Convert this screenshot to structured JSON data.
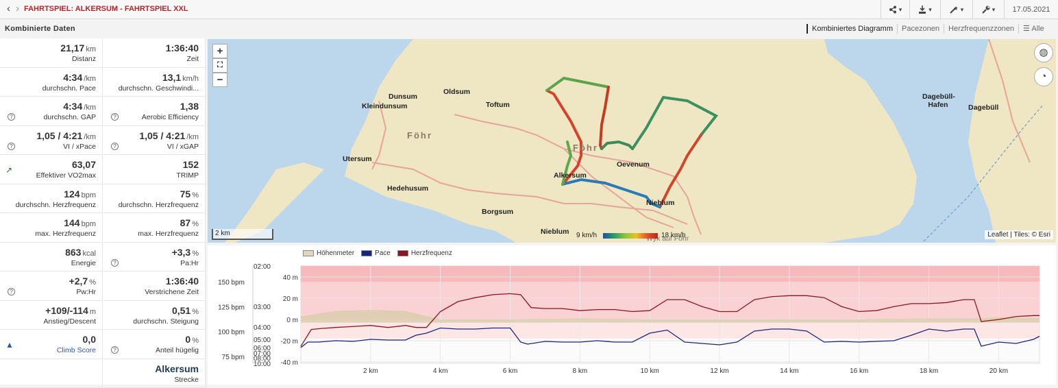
{
  "header": {
    "back_icon": "chevron-left-icon",
    "forward_icon": "chevron-right-icon",
    "title": "FAHRTSPIEL: ALKERSUM - FAHRTSPIEL XXL",
    "buttons": [
      "share-icon",
      "download-icon",
      "magic-wand-icon",
      "wrench-icon"
    ],
    "date": "17.05.2021"
  },
  "section": {
    "title": "Kombinierte Daten"
  },
  "tabs": [
    "Kombiniertes Diagramm",
    "Pacezonen",
    "Herzfrequenzzonen",
    "Alle"
  ],
  "stats": [
    [
      {
        "value": "21,17",
        "unit": "km",
        "label": "Distanz"
      },
      {
        "value": "1:36:40",
        "unit": "",
        "label": "Zeit"
      }
    ],
    [
      {
        "value": "4:34",
        "unit": "/km",
        "label": "durchschn. Pace"
      },
      {
        "value": "13,1",
        "unit": "km/h",
        "label": "durchschn. Geschwindi..."
      }
    ],
    [
      {
        "value": "4:34",
        "unit": "/km",
        "label": "durchschn. GAP",
        "help": true
      },
      {
        "value": "1,38",
        "unit": "",
        "label": "Aerobic Efficiency",
        "help": true
      }
    ],
    [
      {
        "value": "1,05 / 4:21",
        "unit": "/km",
        "label": "VI / xPace",
        "help": true
      },
      {
        "value": "1,05 / 4:21",
        "unit": "/km",
        "label": "VI / xGAP",
        "help": true
      }
    ],
    [
      {
        "value": "63,07",
        "unit": "",
        "label": "Effektiver VO2max",
        "icon": "trend-up-icon"
      },
      {
        "value": "152",
        "unit": "",
        "label": "TRIMP"
      }
    ],
    [
      {
        "value": "124",
        "unit": "bpm",
        "label": "durchschn. Herzfrequenz"
      },
      {
        "value": "75",
        "unit": "%",
        "label": "durchschn. Herzfrequenz"
      }
    ],
    [
      {
        "value": "144",
        "unit": "bpm",
        "label": "max. Herzfrequenz"
      },
      {
        "value": "87",
        "unit": "%",
        "label": "max. Herzfrequenz"
      }
    ],
    [
      {
        "value": "863",
        "unit": "kcal",
        "label": "Energie"
      },
      {
        "value": "+3,3",
        "unit": "%",
        "label": "Pa:Hr",
        "help": true
      }
    ],
    [
      {
        "value": "+2,7",
        "unit": "%",
        "label": "Pw:Hr",
        "help": true
      },
      {
        "value": "1:36:40",
        "unit": "",
        "label": "Verstrichene Zeit"
      }
    ],
    [
      {
        "value": "+109/-114",
        "unit": "m",
        "label": "Anstieg/Descent"
      },
      {
        "value": "0,51",
        "unit": "%",
        "label": "durchschn. Steigung"
      }
    ],
    [
      {
        "value": "0,0",
        "unit": "",
        "label": "Climb Score",
        "icon": "mountain-chart-icon",
        "blue": true
      },
      {
        "value": "0",
        "unit": "%",
        "label": "Anteil hügelig",
        "help": true
      }
    ],
    [
      null,
      {
        "value": "Alkersum",
        "unit": "",
        "label": "Strecke"
      }
    ]
  ],
  "map": {
    "zoom_in": "+",
    "zoom_out": "−",
    "fullscreen_icon": "fullscreen-icon",
    "layers_icon": "globe-icon",
    "dashboard_icon": "speedometer-icon",
    "scale": "2 km",
    "speed_min": "9 km/h",
    "speed_max": "18 km/h",
    "attribution": "Leaflet | Tiles: © Esri",
    "places": [
      "Dunsum",
      "Oldsum",
      "Kleindunsum",
      "Toftum",
      "Föhr",
      "Föhr",
      "Utersum",
      "Oevenum",
      "Alkersum",
      "Hedehusum",
      "Borgsum",
      "Nieblum",
      "Wyk auf Föhr",
      "Dagebüll-Hafen",
      "Dagebüll",
      "Nieblum"
    ]
  },
  "chart_data": {
    "type": "line",
    "legend": [
      "Höhenmeter",
      "Pace",
      "Herzfrequenz"
    ],
    "x_ticks": [
      "2 km",
      "4 km",
      "6 km",
      "8 km",
      "10 km",
      "12 km",
      "14 km",
      "16 km",
      "18 km",
      "20 km"
    ],
    "hr_ticks": [
      "150 bpm",
      "125 bpm",
      "100 bpm",
      "75 bpm"
    ],
    "pace_ticks": [
      "02:00",
      "03:00",
      "04:00",
      "05:00",
      "06:00",
      "07:00",
      "08:00",
      "10:00"
    ],
    "elev_ticks": [
      "40 m",
      "20 m",
      "0 m",
      "-20 m",
      "-40 m"
    ],
    "xlim": [
      0,
      21.17
    ],
    "series": [
      {
        "name": "Herzfrequenz",
        "color": "#8b1520",
        "x": [
          0,
          0.3,
          0.6,
          1,
          1.5,
          2,
          2.5,
          3,
          3.3,
          3.6,
          4,
          4.5,
          5,
          5.5,
          6,
          6.3,
          6.6,
          7,
          7.5,
          8,
          8.5,
          9,
          9.5,
          10,
          10.5,
          11,
          11.5,
          12,
          12.5,
          13,
          13.5,
          14,
          14.5,
          15,
          15.5,
          16,
          16.5,
          17,
          17.5,
          18,
          18.5,
          19,
          19.3,
          19.5,
          20,
          20.5,
          21,
          21.17
        ],
        "y": [
          85,
          102,
          103,
          104,
          105,
          106,
          104,
          106,
          104,
          104,
          120,
          130,
          134,
          137,
          138,
          137,
          124,
          123,
          123,
          121,
          122,
          122,
          120,
          121,
          132,
          132,
          125,
          120,
          120,
          132,
          135,
          136,
          136,
          134,
          125,
          120,
          121,
          125,
          128,
          128,
          129,
          132,
          132,
          110,
          112,
          115,
          116,
          116
        ]
      },
      {
        "name": "Pace",
        "color": "#1a237e",
        "x": [
          0,
          0.2,
          0.5,
          1,
          1.5,
          2,
          2.5,
          3,
          3.3,
          3.6,
          4,
          4.5,
          5,
          5.5,
          6,
          6.3,
          6.5,
          7,
          7.5,
          8,
          8.5,
          9,
          9.5,
          10,
          10.5,
          11,
          11.5,
          12,
          12.5,
          13,
          13.5,
          14,
          14.5,
          15,
          15.5,
          16,
          16.5,
          17,
          17.5,
          18,
          18.5,
          19,
          19.3,
          19.5,
          20,
          20.5,
          21,
          21.17
        ],
        "y": [
          "06:00",
          "05:20",
          "05:20",
          "05:10",
          "05:15",
          "05:00",
          "05:05",
          "05:05",
          "04:40",
          "04:30",
          "04:05",
          "04:10",
          "04:10",
          "04:05",
          "04:05",
          "05:20",
          "05:35",
          "05:15",
          "05:20",
          "05:20",
          "05:10",
          "05:20",
          "05:20",
          "04:30",
          "04:15",
          "05:20",
          "05:30",
          "05:40",
          "05:20",
          "04:20",
          "04:10",
          "04:10",
          "04:20",
          "05:20",
          "05:15",
          "05:20",
          "05:15",
          "05:10",
          "04:40",
          "04:10",
          "04:20",
          "04:10",
          "04:10",
          "05:50",
          "05:20",
          "05:30",
          "05:00",
          "04:45"
        ]
      },
      {
        "name": "Höhenmeter",
        "color": "#c8bfa6",
        "x": [
          0,
          1,
          2,
          3,
          3.5,
          4,
          6,
          8,
          10,
          12,
          14,
          16,
          18,
          19.5,
          20,
          21.17
        ],
        "y": [
          3,
          8,
          9,
          8,
          4,
          0,
          0,
          1,
          0,
          0,
          0,
          0,
          1,
          1,
          2,
          1
        ]
      }
    ]
  }
}
